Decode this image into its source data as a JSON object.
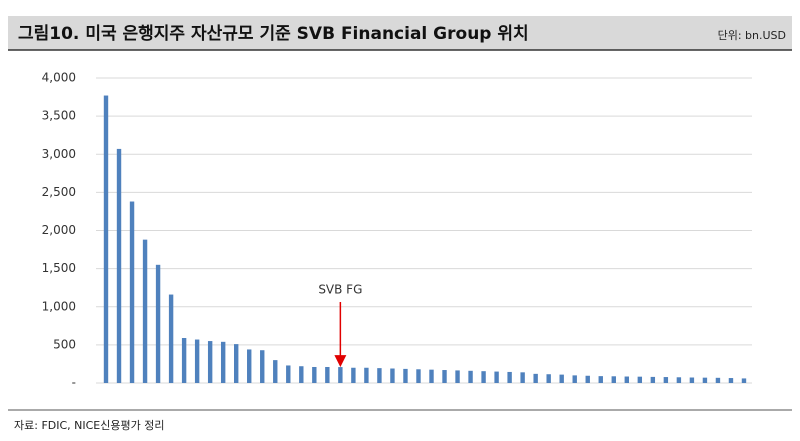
{
  "chart_data": {
    "type": "bar",
    "title": "그림10. 미국 은행지주 자산규모 기준 SVB Financial Group 위치",
    "unit_note": "단위: bn.USD",
    "source": "자료: FDIC, NICE신용평가 정리",
    "annotation": "SVB FG",
    "color": "#4f81bd",
    "categories": [
      null,
      null,
      null,
      null,
      null,
      null,
      null,
      null,
      null,
      null,
      null,
      null,
      null,
      null,
      null,
      null,
      null,
      null,
      null,
      null,
      null,
      null,
      null,
      null,
      null,
      null,
      null,
      null,
      null,
      null,
      null,
      null,
      null,
      null,
      null,
      null,
      null,
      null,
      null,
      null,
      null,
      null,
      null,
      null,
      null,
      null,
      null,
      null,
      null,
      null
    ],
    "values": [
      3770,
      3070,
      2380,
      1880,
      1550,
      1160,
      590,
      570,
      550,
      540,
      510,
      440,
      430,
      300,
      230,
      220,
      210,
      210,
      209,
      200,
      200,
      195,
      190,
      185,
      180,
      175,
      170,
      165,
      160,
      155,
      150,
      145,
      140,
      120,
      115,
      110,
      100,
      95,
      90,
      88,
      85,
      83,
      80,
      78,
      75,
      72,
      70,
      68,
      65,
      60
    ],
    "ylim": [
      0,
      4000
    ],
    "yticks": [
      {
        "value": 0,
        "label": "-"
      },
      500,
      {
        "value": 1000,
        "label": "1,000"
      },
      {
        "value": 1500,
        "label": "1,500"
      },
      {
        "value": 2000,
        "label": "2,000"
      },
      {
        "value": 2500,
        "label": "2,500"
      },
      {
        "value": 3000,
        "label": "3,000"
      },
      {
        "value": 3500,
        "label": "3,500"
      },
      {
        "value": 4000,
        "label": "4,000"
      }
    ],
    "grid": true
  }
}
